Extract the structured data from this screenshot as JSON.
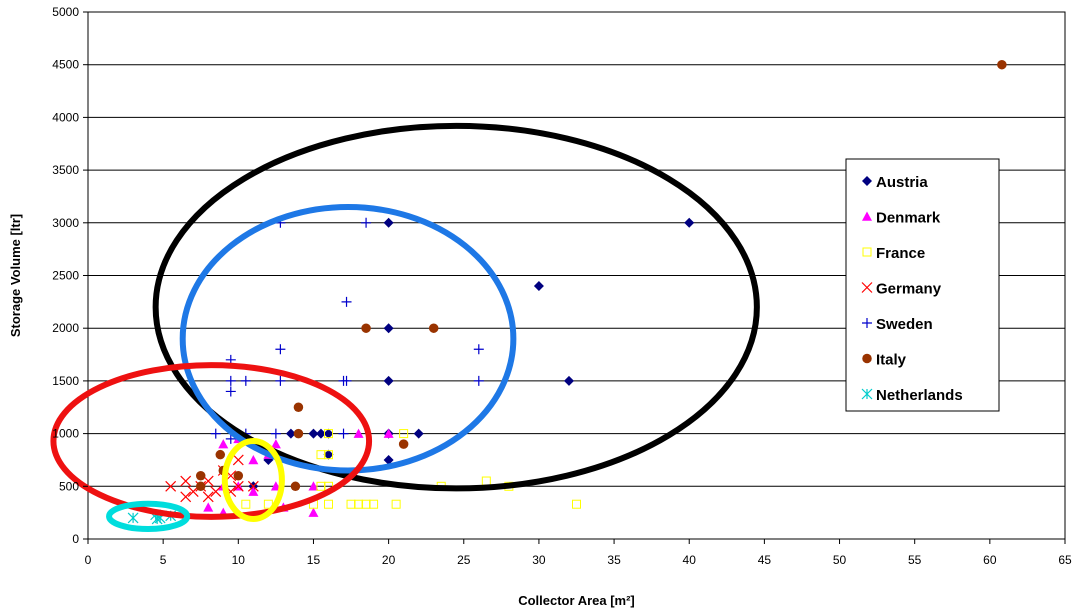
{
  "chart_data": {
    "type": "scatter",
    "title": "",
    "xlabel": "Collector Area [m²]",
    "ylabel": "Storage Volume [ltr]",
    "xlim": [
      0,
      65
    ],
    "ylim": [
      0,
      5000
    ],
    "xticks": [
      0,
      5,
      10,
      15,
      20,
      25,
      30,
      35,
      40,
      45,
      50,
      55,
      60,
      65
    ],
    "yticks": [
      0,
      500,
      1000,
      1500,
      2000,
      2500,
      3000,
      3500,
      4000,
      4500,
      5000
    ],
    "grid": "horizontal",
    "legend_position": "right",
    "series": [
      {
        "name": "Austria",
        "marker": "diamond",
        "color": "#000080",
        "points": [
          [
            20,
            3000
          ],
          [
            40,
            3000
          ],
          [
            30,
            2400
          ],
          [
            20,
            2000
          ],
          [
            20,
            1500
          ],
          [
            32,
            1500
          ],
          [
            13.5,
            1000
          ],
          [
            15,
            1000
          ],
          [
            16,
            1000
          ],
          [
            20,
            1000
          ],
          [
            22,
            1000
          ],
          [
            15.5,
            1000
          ],
          [
            20,
            750
          ],
          [
            12,
            750
          ],
          [
            11,
            500
          ],
          [
            16,
            800
          ]
        ]
      },
      {
        "name": "Denmark",
        "marker": "triangle",
        "color": "#ff00ff",
        "points": [
          [
            9,
            900
          ],
          [
            10,
            950
          ],
          [
            11,
            750
          ],
          [
            12,
            800
          ],
          [
            12.5,
            900
          ],
          [
            18,
            1000
          ],
          [
            20,
            1000
          ],
          [
            9,
            500
          ],
          [
            10,
            500
          ],
          [
            12.5,
            500
          ],
          [
            15,
            500
          ],
          [
            8,
            300
          ],
          [
            9,
            250
          ],
          [
            13,
            300
          ],
          [
            15,
            250
          ],
          [
            11,
            450
          ]
        ]
      },
      {
        "name": "France",
        "marker": "square",
        "color": "#ffff00",
        "points": [
          [
            10.5,
            330
          ],
          [
            15,
            330
          ],
          [
            16,
            330
          ],
          [
            17.5,
            330
          ],
          [
            18,
            330
          ],
          [
            18.5,
            330
          ],
          [
            19,
            330
          ],
          [
            20.5,
            330
          ],
          [
            32.5,
            330
          ],
          [
            15.5,
            500
          ],
          [
            16,
            500
          ],
          [
            21,
            1000
          ],
          [
            16,
            1000
          ],
          [
            15.5,
            800
          ],
          [
            23.5,
            500
          ],
          [
            26.5,
            550
          ],
          [
            28,
            500
          ],
          [
            16,
            800
          ],
          [
            12,
            330
          ]
        ]
      },
      {
        "name": "Germany",
        "marker": "x",
        "color": "#ff0000",
        "points": [
          [
            5.5,
            500
          ],
          [
            6.5,
            550
          ],
          [
            7,
            450
          ],
          [
            7.5,
            500
          ],
          [
            8,
            550
          ],
          [
            8.5,
            450
          ],
          [
            9,
            650
          ],
          [
            9.5,
            600
          ],
          [
            10,
            750
          ],
          [
            11,
            500
          ],
          [
            6.5,
            400
          ],
          [
            8,
            400
          ],
          [
            9.5,
            450
          ],
          [
            10,
            500
          ]
        ]
      },
      {
        "name": "Sweden",
        "marker": "plus",
        "color": "#0000cc",
        "points": [
          [
            12.8,
            3000
          ],
          [
            18.5,
            3000
          ],
          [
            17.2,
            2250
          ],
          [
            26,
            1800
          ],
          [
            12.8,
            1800
          ],
          [
            9.5,
            1700
          ],
          [
            17,
            1500
          ],
          [
            17.2,
            1500
          ],
          [
            12.8,
            1500
          ],
          [
            9.5,
            1500
          ],
          [
            10.5,
            1500
          ],
          [
            26,
            1500
          ],
          [
            9.5,
            1400
          ],
          [
            8.5,
            1000
          ],
          [
            10.5,
            1000
          ],
          [
            12.5,
            1000
          ],
          [
            17,
            1000
          ],
          [
            9.5,
            950
          ]
        ]
      },
      {
        "name": "Italy",
        "marker": "circle",
        "color": "#993300",
        "points": [
          [
            60.8,
            4500
          ],
          [
            18.5,
            2000
          ],
          [
            23,
            2000
          ],
          [
            14,
            1250
          ],
          [
            14,
            1000
          ],
          [
            21,
            900
          ],
          [
            8.8,
            800
          ],
          [
            7.5,
            600
          ],
          [
            7.5,
            500
          ],
          [
            13.8,
            500
          ],
          [
            9,
            650
          ],
          [
            10,
            600
          ]
        ]
      },
      {
        "name": "Netherlands",
        "marker": "asterisk",
        "color": "#00cccc",
        "points": [
          [
            3,
            200
          ],
          [
            4.5,
            230
          ],
          [
            4.8,
            200
          ],
          [
            5.5,
            220
          ],
          [
            4.6,
            190
          ]
        ]
      }
    ],
    "annotations": [
      {
        "shape": "ellipse",
        "color": "#000000",
        "cx": 24.5,
        "cy": 2200,
        "rx": 20.0,
        "ry": 1720
      },
      {
        "shape": "ellipse",
        "color": "#1e78e6",
        "cx": 17.3,
        "cy": 1900,
        "rx": 11.0,
        "ry": 1250
      },
      {
        "shape": "ellipse",
        "color": "#ee1111",
        "cx": 8.2,
        "cy": 930,
        "rx": 10.5,
        "ry": 720
      },
      {
        "shape": "ellipse",
        "color": "#ffff00",
        "cx": 11.0,
        "cy": 560,
        "rx": 1.9,
        "ry": 370
      },
      {
        "shape": "ellipse",
        "color": "#00dddd",
        "cx": 4.0,
        "cy": 215,
        "rx": 2.6,
        "ry": 120
      }
    ]
  }
}
